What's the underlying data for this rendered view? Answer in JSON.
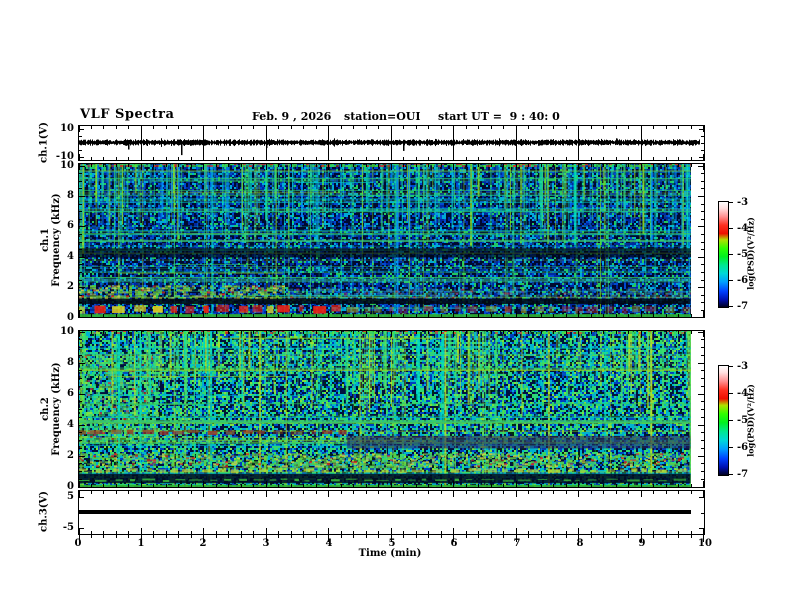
{
  "title": "VLF Spectra",
  "header": {
    "date": "Feb. 9 , 2026",
    "station": "station=OUI",
    "start_ut": "start UT =  9 : 40: 0"
  },
  "time_axis": {
    "label": "Time (min)",
    "ticks": [
      {
        "v": 0,
        "label": "0"
      },
      {
        "v": 1,
        "label": "1"
      },
      {
        "v": 2,
        "label": "2"
      },
      {
        "v": 3,
        "label": "3"
      },
      {
        "v": 4,
        "label": "4"
      },
      {
        "v": 5,
        "label": "5"
      },
      {
        "v": 6,
        "label": "6"
      },
      {
        "v": 7,
        "label": "7"
      },
      {
        "v": 8,
        "label": "8"
      },
      {
        "v": 9,
        "label": "9"
      },
      {
        "v": 10,
        "label": "10"
      }
    ]
  },
  "panels": {
    "ch1v": {
      "label": "ch.1(V)",
      "yticks": [
        {
          "v": 10,
          "label": "10"
        },
        {
          "v": -10,
          "label": "-10"
        }
      ]
    },
    "spec1": {
      "channel": "ch.1",
      "axis": "Frequency (kHz)",
      "yticks": [
        {
          "v": 10,
          "label": "10"
        },
        {
          "v": 8,
          "label": "8"
        },
        {
          "v": 6,
          "label": "6"
        },
        {
          "v": 4,
          "label": "4"
        },
        {
          "v": 2,
          "label": "2"
        },
        {
          "v": 0,
          "label": "0"
        }
      ]
    },
    "spec2": {
      "channel": "ch.2",
      "axis": "Frequency (kHz)",
      "yticks": [
        {
          "v": 10,
          "label": "10"
        },
        {
          "v": 8,
          "label": "8"
        },
        {
          "v": 6,
          "label": "6"
        },
        {
          "v": 4,
          "label": "4"
        },
        {
          "v": 2,
          "label": "2"
        },
        {
          "v": 0,
          "label": "0"
        }
      ]
    },
    "ch3v": {
      "label": "ch.3(V)",
      "yticks": [
        {
          "v": 5,
          "label": "5"
        },
        {
          "v": -5,
          "label": "-5"
        }
      ]
    }
  },
  "colorbar": {
    "label": "log(PSD)(V²/Hz)",
    "ticks": [
      {
        "f": 0,
        "label": "-3"
      },
      {
        "f": 0.25,
        "label": "-4"
      },
      {
        "f": 0.5,
        "label": "-5"
      },
      {
        "f": 0.75,
        "label": "-6"
      },
      {
        "f": 1,
        "label": "-7"
      }
    ],
    "gradient": [
      [
        0.0,
        "#ffffff"
      ],
      [
        0.06,
        "#ffe0e0"
      ],
      [
        0.14,
        "#ff9090"
      ],
      [
        0.22,
        "#ff3020"
      ],
      [
        0.3,
        "#ee1000"
      ],
      [
        0.36,
        "#b0e000"
      ],
      [
        0.44,
        "#30ff00"
      ],
      [
        0.52,
        "#00f020"
      ],
      [
        0.6,
        "#00e890"
      ],
      [
        0.68,
        "#00d8d8"
      ],
      [
        0.76,
        "#00a0ff"
      ],
      [
        0.85,
        "#0040ff"
      ],
      [
        0.93,
        "#0010b0"
      ],
      [
        1.0,
        "#000020"
      ]
    ]
  },
  "chart_data": [
    {
      "type": "line",
      "panel": "ch1v",
      "name": "ch.1 raw voltage",
      "xlabel": "Time (min)",
      "ylabel": "ch.1(V)",
      "xlim": [
        0,
        10
      ],
      "ylim": [
        -10,
        10
      ],
      "description": "Continuous broadband noise trace centred on 0 V (about ±1.5 V) for the whole 10 min record, with a few transient spikes",
      "noise_amplitude_v": 1.5,
      "data_end_min": 9.95,
      "spikes": [
        {
          "t": 0.8,
          "v": -5
        },
        {
          "t": 1.65,
          "v": -9
        },
        {
          "t": 3.0,
          "v": -4
        },
        {
          "t": 5.2,
          "v": -6
        },
        {
          "t": 8.6,
          "v": 3
        }
      ]
    },
    {
      "type": "heatmap",
      "panel": "spec1",
      "name": "ch.1 VLF spectrogram",
      "xlim": [
        0,
        10
      ],
      "ylim": [
        0,
        10
      ],
      "zlim": [
        -7,
        -3
      ],
      "zlabel": "log(PSD)(V²/Hz)",
      "data_end_min": 9.8,
      "description": "Blue noise background with dense green/cyan vertical sferic streaks above ~4 kHz, many thin horizontal interference lines, strong yellow-green band 1.3-2.1 kHz (strongest before 3.3 min), a thick red dashed band 0.35-0.85 kHz (strongest before 4.3 min) and a dark band near 1 kHz and 4-4.5 kHz",
      "features": [
        {
          "f0": 9.75,
          "f1": 10.0,
          "t0": 0,
          "t1": 9.8,
          "color": "#40e040",
          "color2": "#e03020",
          "style": "mottle",
          "alpha": 0.9
        },
        {
          "f0": 3.9,
          "f1": 4.5,
          "t0": 0,
          "t1": 9.8,
          "color": "#000814",
          "style": "solid",
          "alpha": 0.65
        },
        {
          "f0": 4.9,
          "f1": 5.05,
          "t0": 0,
          "t1": 9.8,
          "color": "#50d050",
          "style": "solid",
          "alpha": 0.5
        },
        {
          "f0": 2.3,
          "f1": 2.55,
          "t0": 0,
          "t1": 9.8,
          "color": "#30c890",
          "style": "solid",
          "alpha": 0.5
        },
        {
          "f0": 1.3,
          "f1": 2.1,
          "t0": 0,
          "t1": 3.3,
          "color": "#70c830",
          "color2": "#d0d040",
          "style": "mottle",
          "alpha": 0.95
        },
        {
          "f0": 1.3,
          "f1": 1.9,
          "t0": 3.3,
          "t1": 9.8,
          "color": "#40a0b0",
          "color2": "#70c830",
          "style": "mottle",
          "alpha": 0.6
        },
        {
          "f0": 0.9,
          "f1": 1.25,
          "t0": 0,
          "t1": 9.8,
          "color": "#000810",
          "style": "solid",
          "alpha": 0.85
        },
        {
          "f0": 0.35,
          "f1": 0.85,
          "t0": 0,
          "t1": 4.3,
          "color": "#ee2010",
          "color2": "#e0d020",
          "style": "dash",
          "alpha": 0.95
        },
        {
          "f0": 0.35,
          "f1": 0.8,
          "t0": 4.3,
          "t1": 9.8,
          "color": "#cc3020",
          "color2": "#b0b020",
          "style": "dash",
          "alpha": 0.55
        },
        {
          "f0": 0.0,
          "f1": 0.25,
          "t0": 0,
          "t1": 9.8,
          "color": "#30b030",
          "style": "solid",
          "alpha": 0.9
        }
      ],
      "texture": {
        "seed": 20260209,
        "base": "#000a28",
        "palette": [
          [
            "#000a30",
            0.4
          ],
          [
            "#0028a0",
            0.22
          ],
          [
            "#0048d0",
            0.13
          ],
          [
            "#00a8d8",
            0.12
          ],
          [
            "#20c860",
            0.08
          ],
          [
            "#104080",
            0.05
          ]
        ],
        "streaks": 260,
        "streak_zone": 0.6,
        "streak_colors": [
          "#30e080",
          "#00e0c0",
          "#90e020",
          "#0090ff"
        ],
        "vlines": 30,
        "vline_colors": [
          "#80d820",
          "#00d8b0"
        ],
        "hlines": 50,
        "hline_colors": [
          "#30c860",
          "#00c8c8",
          "#90d020"
        ],
        "patches": []
      }
    },
    {
      "type": "heatmap",
      "panel": "spec2",
      "name": "ch.2 VLF spectrogram",
      "xlim": [
        0,
        10
      ],
      "ylim": [
        0,
        10
      ],
      "zlim": [
        -7,
        -3
      ],
      "zlabel": "log(PSD)(V²/Hz)",
      "data_end_min": 9.8,
      "description": "Greener/cyan-rich spectrogram: bright green patch 3-8.6 kHz during first 1.25 min, green vertical streaks over blue above 4 kHz, yellow-green band 1.4-2.2 kHz, dark navy band 0.3-0.9 kHz with green dashes, dark-red dashes near 3.5 kHz before 4.3 min and a dark purple band 2.5-3.3 kHz after 4.3 min",
      "features": [
        {
          "f0": 9.75,
          "f1": 10.0,
          "t0": 0,
          "t1": 9.8,
          "color": "#40e040",
          "color2": "#e03020",
          "style": "mottle",
          "alpha": 0.9
        },
        {
          "f0": 4.1,
          "f1": 4.3,
          "t0": 0,
          "t1": 9.8,
          "color": "#40c860",
          "style": "solid",
          "alpha": 0.7
        },
        {
          "f0": 3.4,
          "f1": 3.7,
          "t0": 0,
          "t1": 4.3,
          "color": "#a03020",
          "color2": "#803020",
          "style": "dash",
          "alpha": 0.85
        },
        {
          "f0": 2.5,
          "f1": 3.3,
          "t0": 4.3,
          "t1": 9.8,
          "color": "#282060",
          "style": "solid",
          "alpha": 0.55
        },
        {
          "f0": 1.4,
          "f1": 2.2,
          "t0": 0,
          "t1": 9.8,
          "color": "#60c840",
          "color2": "#d0d040",
          "style": "mottle",
          "alpha": 0.9
        },
        {
          "f0": 1.0,
          "f1": 1.25,
          "t0": 0,
          "t1": 9.8,
          "color": "#c0d030",
          "style": "dash",
          "alpha": 0.8
        },
        {
          "f0": 0.3,
          "f1": 0.9,
          "t0": 0,
          "t1": 9.8,
          "color": "#000a20",
          "style": "solid",
          "alpha": 0.85
        },
        {
          "f0": 0.45,
          "f1": 0.6,
          "t0": 0,
          "t1": 9.8,
          "color": "#40d040",
          "style": "dash",
          "alpha": 0.8
        },
        {
          "f0": 0.0,
          "f1": 0.2,
          "t0": 0,
          "t1": 9.8,
          "color": "#30b030",
          "style": "solid",
          "alpha": 0.9
        }
      ],
      "texture": {
        "seed": 4094040,
        "base": "#001535",
        "palette": [
          [
            "#001040",
            0.25
          ],
          [
            "#0040c0",
            0.18
          ],
          [
            "#00b0d0",
            0.22
          ],
          [
            "#30d870",
            0.22
          ],
          [
            "#80e040",
            0.06
          ],
          [
            "#002810",
            0.07
          ]
        ],
        "streaks": 200,
        "streak_zone": 0.55,
        "streak_colors": [
          "#40e070",
          "#00e0c0",
          "#c0e020"
        ],
        "vlines": 25,
        "vline_colors": [
          "#80d820",
          "#00d8b0"
        ],
        "hlines": 40,
        "hline_colors": [
          "#30c860",
          "#00c8c8",
          "#90d020"
        ],
        "patches": [
          {
            "f0": 2.8,
            "f1": 8.6,
            "t0": 0,
            "t1": 1.25,
            "color": "#38e078",
            "color2": "#80e040",
            "style": "mottle",
            "alpha": 0.85
          }
        ]
      }
    },
    {
      "type": "line",
      "panel": "ch3v",
      "name": "ch.3 raw voltage",
      "xlabel": "Time (min)",
      "ylabel": "ch.3(V)",
      "xlim": [
        0,
        10
      ],
      "ylim": [
        -5,
        5
      ],
      "description": "Flat thick black trace at about +0.3 V for the whole record",
      "constant_v": 0.3,
      "data_end_min": 9.8
    }
  ]
}
